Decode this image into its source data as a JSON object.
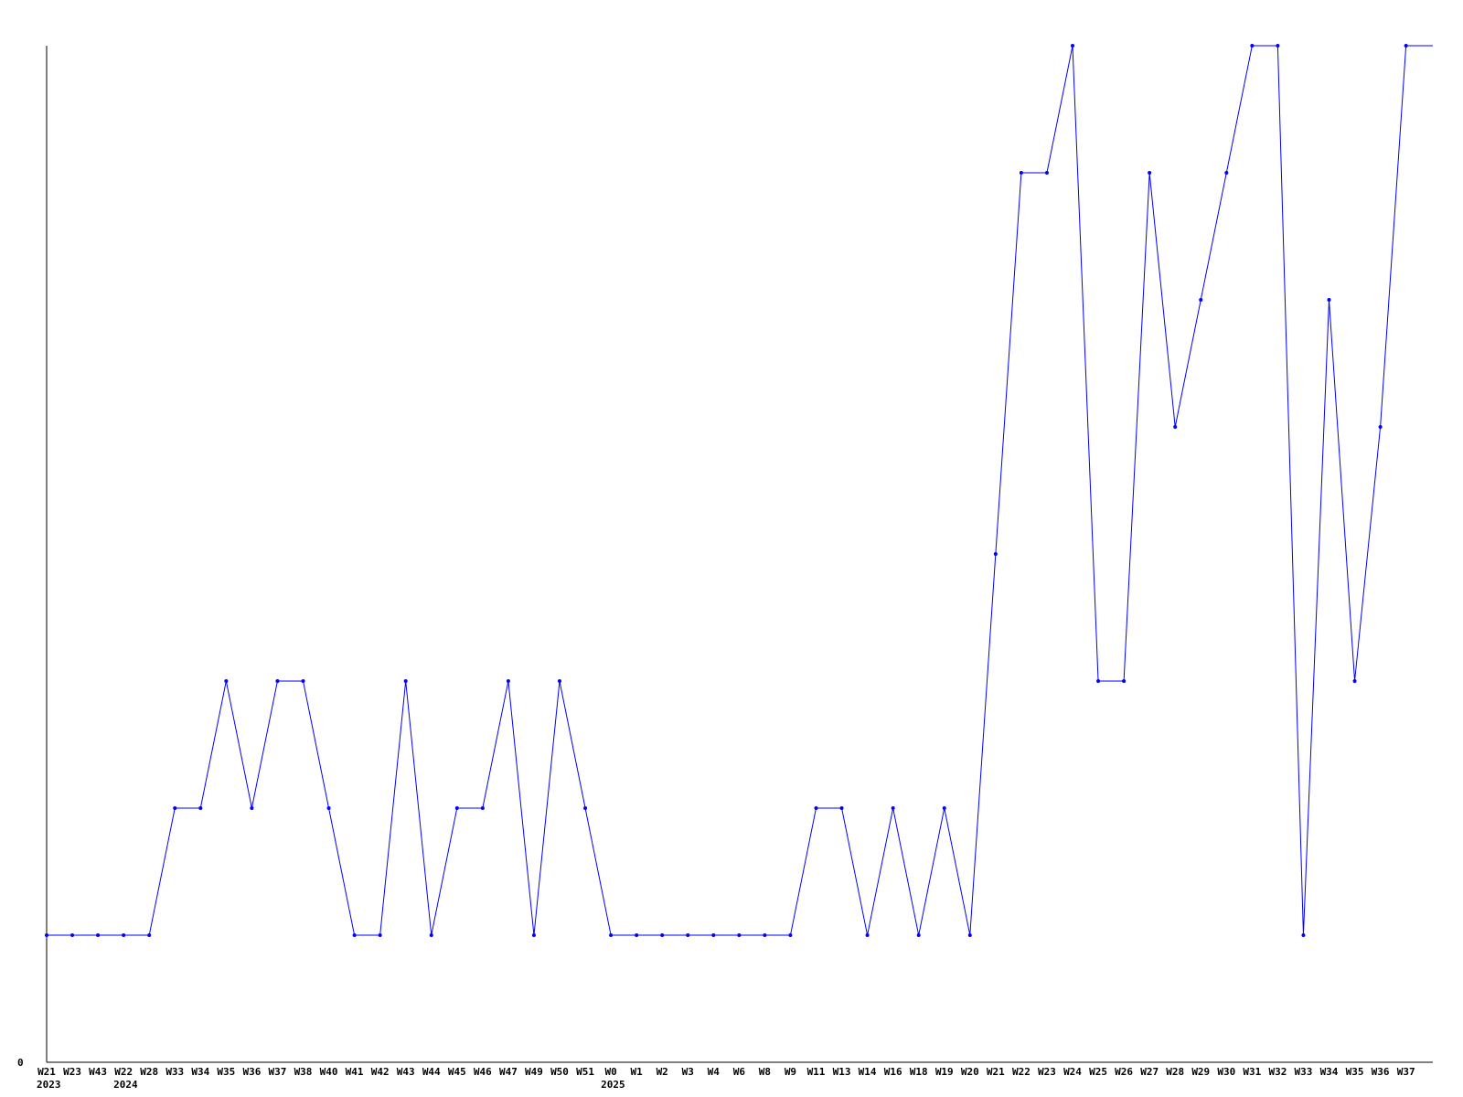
{
  "chart_data": {
    "type": "line",
    "title": "",
    "xlabel": "",
    "ylabel": "",
    "ylim": [
      0,
      8
    ],
    "y_tick_labels": [
      "0"
    ],
    "grid": false,
    "legend": "none",
    "series_color": "#0000ff",
    "categories": [
      "W21",
      "W23",
      "W43",
      "W22",
      "W28",
      "W33",
      "W34",
      "W35",
      "W36",
      "W37",
      "W38",
      "W40",
      "W41",
      "W42",
      "W43",
      "W44",
      "W45",
      "W46",
      "W47",
      "W49",
      "W50",
      "W51",
      "W0",
      "W1",
      "W2",
      "W3",
      "W4",
      "W6",
      "W8",
      "W9",
      "W11",
      "W13",
      "W14",
      "W16",
      "W18",
      "W19",
      "W20",
      "W21",
      "W22",
      "W23",
      "W24",
      "W25",
      "W26",
      "W27",
      "W28",
      "W29",
      "W30",
      "W31",
      "W32",
      "W33",
      "W34",
      "W35",
      "W36",
      "W37"
    ],
    "year_labels": [
      {
        "index": 0,
        "label": "2023"
      },
      {
        "index": 3,
        "label": "2024"
      },
      {
        "index": 22,
        "label": "2025"
      }
    ],
    "values": [
      1,
      1,
      1,
      1,
      1,
      2,
      2,
      3,
      2,
      3,
      3,
      2,
      1,
      1,
      3,
      1,
      2,
      2,
      3,
      1,
      3,
      2,
      1,
      1,
      1,
      1,
      1,
      1,
      1,
      1,
      2,
      2,
      1,
      2,
      1,
      2,
      1,
      4,
      7,
      7,
      8,
      3,
      3,
      7,
      5,
      6,
      7,
      8,
      8,
      1,
      6,
      3,
      5,
      8
    ]
  }
}
